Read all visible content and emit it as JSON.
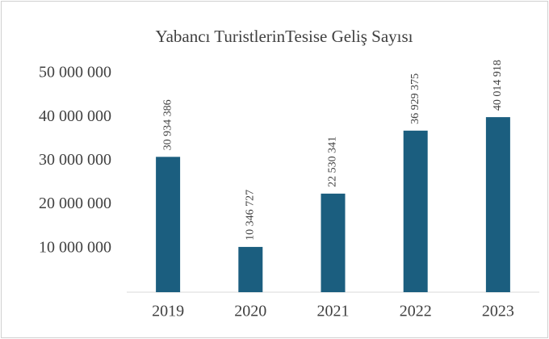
{
  "chart_data": {
    "type": "bar",
    "title": "Yabancı TuristlerinTesise Geliş Sayısı",
    "categories": [
      "2019",
      "2020",
      "2021",
      "2022",
      "2023"
    ],
    "values": [
      30934386,
      10346727,
      22530341,
      36929375,
      40014918
    ],
    "value_labels": [
      "30 934 386",
      "10 346 727",
      "22 530 341",
      "36 929 375",
      "40 014 918"
    ],
    "color": "#1b5e7f",
    "ylim": [
      0,
      50000000
    ],
    "yticks": [
      {
        "value": 10000000,
        "label": "10 000 000"
      },
      {
        "value": 20000000,
        "label": "20 000 000"
      },
      {
        "value": 30000000,
        "label": "30 000 000"
      },
      {
        "value": 40000000,
        "label": "40 000 000"
      },
      {
        "value": 50000000,
        "label": "50 000 000"
      }
    ],
    "grid": false
  }
}
